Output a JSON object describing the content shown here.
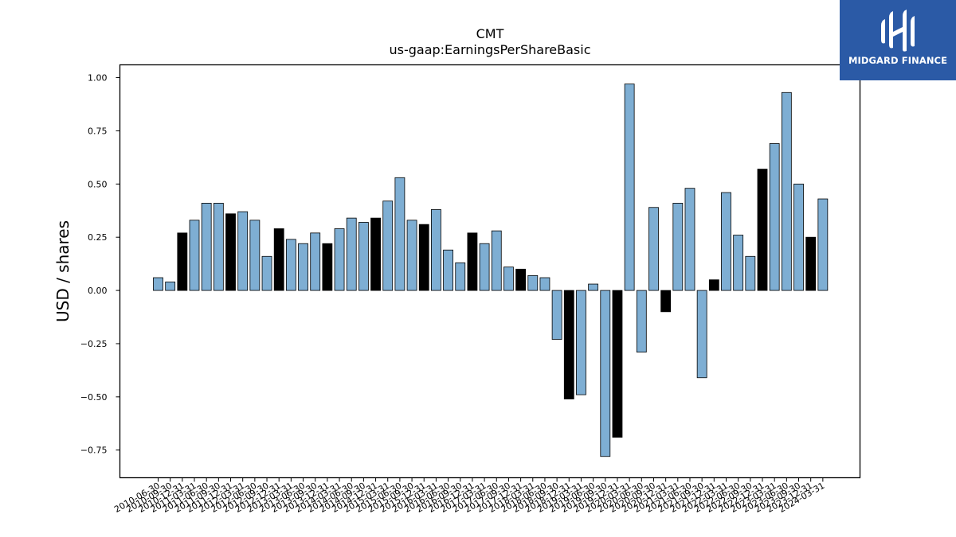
{
  "chart_data": {
    "type": "bar",
    "title": "CMT",
    "subtitle": "us-gaap:EarningsPerShareBasic",
    "xlabel": "",
    "ylabel": "USD / shares",
    "ylim": [
      -0.88,
      1.06
    ],
    "yticks": [
      -0.75,
      -0.5,
      -0.25,
      0.0,
      0.25,
      0.5,
      0.75,
      1.0
    ],
    "ytick_labels": [
      "−0.75",
      "−0.50",
      "−0.25",
      "0.00",
      "0.25",
      "0.50",
      "0.75",
      "1.00"
    ],
    "grid": false,
    "colors": {
      "quarterly": "#7eaed3",
      "annual": "#000000",
      "edge": "#000000"
    },
    "categories": [
      "2010-06-30",
      "2010-09-30",
      "2010-12-31",
      "2011-03-31",
      "2011-06-30",
      "2011-09-30",
      "2011-12-31",
      "2012-03-31",
      "2012-06-30",
      "2012-09-30",
      "2012-12-31",
      "2013-03-31",
      "2013-06-30",
      "2013-09-30",
      "2013-12-31",
      "2014-03-31",
      "2014-06-30",
      "2014-09-30",
      "2014-12-31",
      "2015-03-31",
      "2015-06-30",
      "2015-09-30",
      "2015-12-31",
      "2016-03-31",
      "2016-06-30",
      "2016-09-30",
      "2016-12-31",
      "2017-03-31",
      "2017-06-30",
      "2017-09-30",
      "2017-12-31",
      "2018-03-31",
      "2018-06-30",
      "2018-09-30",
      "2018-12-31",
      "2019-03-31",
      "2019-06-30",
      "2019-09-30",
      "2019-12-31",
      "2020-03-31",
      "2020-06-30",
      "2020-09-30",
      "2020-12-31",
      "2021-03-31",
      "2021-06-30",
      "2021-09-30",
      "2021-12-31",
      "2022-03-31",
      "2022-06-30",
      "2022-09-30",
      "2022-12-31",
      "2023-03-31",
      "2023-06-30",
      "2023-09-30",
      "2023-12-31",
      "2024-03-31"
    ],
    "values": [
      0.06,
      0.04,
      0.27,
      0.33,
      0.41,
      0.41,
      0.36,
      0.37,
      0.33,
      0.16,
      0.29,
      0.24,
      0.22,
      0.27,
      0.22,
      0.29,
      0.34,
      0.32,
      0.34,
      0.42,
      0.53,
      0.33,
      0.31,
      0.38,
      0.19,
      0.13,
      0.27,
      0.22,
      0.28,
      0.11,
      0.1,
      0.07,
      0.06,
      -0.23,
      -0.51,
      -0.49,
      0.03,
      -0.78,
      -0.69,
      0.97,
      -0.29,
      0.39,
      -0.1,
      0.41,
      0.48,
      -0.41,
      0.05,
      0.46,
      0.26,
      0.16,
      0.57,
      0.69,
      0.93,
      0.5,
      0.25,
      0.43
    ],
    "annual": [
      false,
      false,
      true,
      false,
      false,
      false,
      true,
      false,
      false,
      false,
      true,
      false,
      false,
      false,
      true,
      false,
      false,
      false,
      true,
      false,
      false,
      false,
      true,
      false,
      false,
      false,
      true,
      false,
      false,
      false,
      true,
      false,
      false,
      false,
      true,
      false,
      false,
      false,
      true,
      false,
      false,
      false,
      true,
      false,
      false,
      false,
      true,
      false,
      false,
      false,
      true,
      false,
      false,
      false,
      true,
      false
    ]
  },
  "logo": {
    "brand": "MIDGARD FINANCE",
    "icon": "midgard-finance-logo-icon"
  }
}
